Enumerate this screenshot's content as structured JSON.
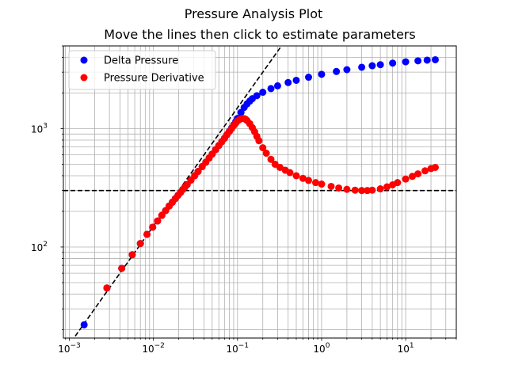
{
  "chart_data": {
    "type": "scatter",
    "title": "Pressure Analysis Plot",
    "subtitle": "Move the lines then click to estimate parameters",
    "xscale": "log",
    "yscale": "log",
    "xlim": [
      0.00085,
      40
    ],
    "ylim": [
      17,
      5000
    ],
    "grid": true,
    "legend_position": "top-left",
    "x_ticks": [
      {
        "value": 0.001,
        "base": "10",
        "exp": "−3"
      },
      {
        "value": 0.01,
        "base": "10",
        "exp": "−2"
      },
      {
        "value": 0.1,
        "base": "10",
        "exp": "−1"
      },
      {
        "value": 1,
        "base": "10",
        "exp": "0"
      },
      {
        "value": 10,
        "base": "10",
        "exp": "1"
      }
    ],
    "y_ticks": [
      {
        "value": 100,
        "base": "10",
        "exp": "2"
      },
      {
        "value": 1000,
        "base": "10",
        "exp": "3"
      }
    ],
    "series": [
      {
        "name": "Delta Pressure",
        "color": "#0000ff",
        "x": [
          0.0015,
          0.0028,
          0.0042,
          0.0056,
          0.007,
          0.0084,
          0.0098,
          0.0112,
          0.0126,
          0.014,
          0.0154,
          0.0168,
          0.0182,
          0.0196,
          0.021,
          0.0224,
          0.0238,
          0.0252,
          0.028,
          0.031,
          0.034,
          0.038,
          0.042,
          0.046,
          0.05,
          0.055,
          0.06,
          0.065,
          0.07,
          0.075,
          0.08,
          0.085,
          0.09,
          0.095,
          0.1,
          0.11,
          0.12,
          0.13,
          0.14,
          0.15,
          0.17,
          0.2,
          0.25,
          0.3,
          0.4,
          0.5,
          0.7,
          1,
          1.5,
          2,
          3,
          4,
          5,
          7,
          10,
          14,
          18,
          22.5
        ],
        "y": [
          22,
          45,
          66,
          86,
          107,
          128,
          147,
          166,
          185,
          203,
          222,
          239,
          256,
          273,
          289,
          306,
          322,
          337,
          368,
          400,
          435,
          478,
          520,
          565,
          610,
          665,
          720,
          775,
          830,
          890,
          950,
          1010,
          1075,
          1140,
          1220,
          1370,
          1510,
          1620,
          1710,
          1790,
          1900,
          2030,
          2180,
          2300,
          2450,
          2560,
          2720,
          2880,
          3040,
          3150,
          3300,
          3400,
          3470,
          3580,
          3670,
          3740,
          3790,
          3820
        ]
      },
      {
        "name": "Pressure Derivative",
        "color": "#ff0000",
        "x": [
          0.0028,
          0.0042,
          0.0056,
          0.007,
          0.0084,
          0.0098,
          0.0112,
          0.0126,
          0.014,
          0.0154,
          0.0168,
          0.0182,
          0.0196,
          0.021,
          0.0224,
          0.0238,
          0.0252,
          0.028,
          0.031,
          0.034,
          0.038,
          0.042,
          0.046,
          0.05,
          0.055,
          0.06,
          0.065,
          0.07,
          0.075,
          0.08,
          0.085,
          0.09,
          0.095,
          0.1,
          0.105,
          0.11,
          0.115,
          0.12,
          0.125,
          0.13,
          0.14,
          0.15,
          0.16,
          0.17,
          0.18,
          0.2,
          0.22,
          0.25,
          0.28,
          0.32,
          0.37,
          0.42,
          0.5,
          0.6,
          0.7,
          0.85,
          1,
          1.3,
          1.6,
          2,
          2.5,
          3,
          3.5,
          4,
          5,
          6,
          7,
          8,
          10,
          12,
          14,
          17,
          20,
          22.5
        ],
        "y": [
          45,
          66,
          86,
          107,
          128,
          147,
          166,
          185,
          203,
          222,
          239,
          256,
          273,
          289,
          306,
          322,
          337,
          368,
          400,
          435,
          478,
          520,
          565,
          610,
          665,
          720,
          775,
          830,
          890,
          945,
          1000,
          1060,
          1110,
          1160,
          1190,
          1210,
          1220,
          1215,
          1200,
          1170,
          1100,
          1020,
          940,
          860,
          790,
          690,
          620,
          550,
          500,
          470,
          445,
          425,
          400,
          380,
          365,
          350,
          340,
          325,
          315,
          307,
          302,
          300,
          300,
          302,
          310,
          322,
          335,
          350,
          375,
          395,
          415,
          440,
          460,
          470
        ]
      }
    ],
    "lines": [
      {
        "kind": "power-law",
        "slope": 1,
        "through": [
          0.01,
          150
        ],
        "style": "dashed",
        "color": "#000000"
      },
      {
        "kind": "horizontal",
        "y": 300,
        "style": "dashed",
        "color": "#000000"
      }
    ]
  }
}
